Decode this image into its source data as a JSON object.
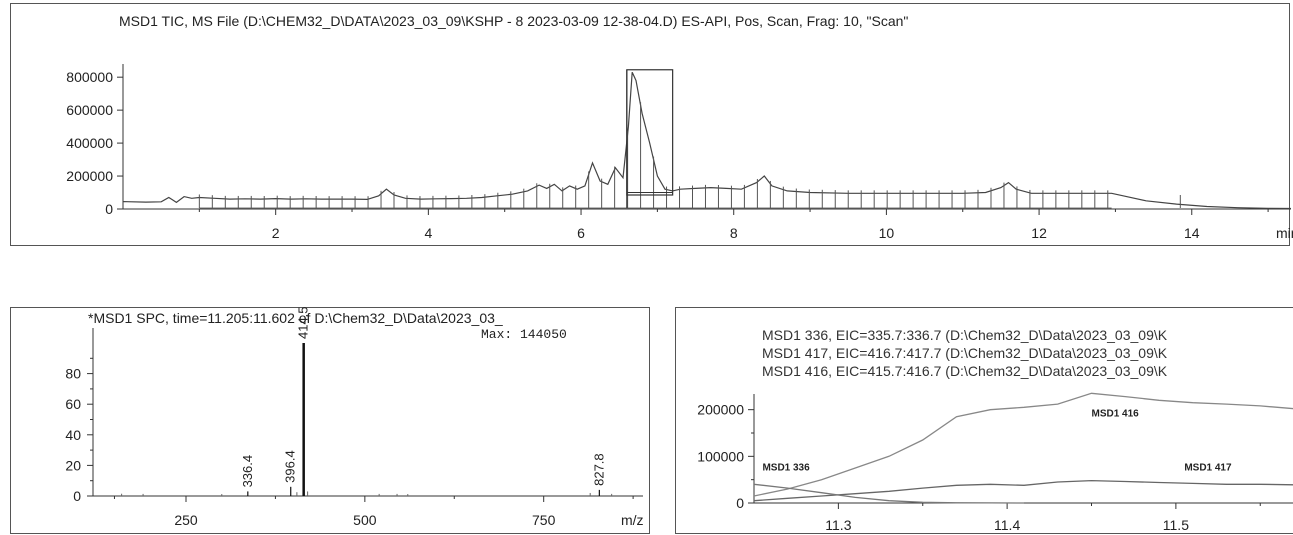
{
  "chart_data": [
    {
      "type": "line",
      "title": "MSD1 TIC, MS File (D:\\CHEM32_D\\DATA\\2023_03_09\\KSHP - 8 2023-03-09 12-38-04.D)    ES-API, Pos, Scan, Frag: 10, \"Scan\"",
      "xlabel": "min",
      "ylabel": "",
      "xlim": [
        0,
        15.3
      ],
      "ylim": [
        0,
        880000
      ],
      "x_ticks": [
        2,
        4,
        6,
        8,
        10,
        12,
        14
      ],
      "y_ticks": [
        0,
        200000,
        400000,
        600000,
        800000
      ],
      "x_tick_labels": [
        "2",
        "4",
        "6",
        "8",
        "10",
        "12",
        "14"
      ],
      "y_tick_labels": [
        "0",
        "200000",
        "400000",
        "600000",
        "800000"
      ],
      "x_unit_label": "min",
      "selection_range": [
        6.6,
        7.2
      ],
      "series": [
        {
          "x": [
            0.0,
            0.3,
            0.5,
            0.6,
            0.65,
            0.7,
            0.8,
            0.9,
            1.0,
            1.2,
            1.4,
            1.6,
            1.8,
            2.0,
            2.2,
            2.4,
            2.6,
            2.8,
            3.0,
            3.2,
            3.35,
            3.45,
            3.55,
            3.7,
            3.9,
            4.1,
            4.3,
            4.5,
            4.7,
            4.9,
            5.1,
            5.3,
            5.45,
            5.55,
            5.65,
            5.75,
            5.85,
            5.95,
            6.05,
            6.15,
            6.25,
            6.35,
            6.45,
            6.55,
            6.62,
            6.67,
            6.72,
            6.8,
            6.9,
            7.0,
            7.1,
            7.2,
            7.3,
            7.5,
            7.7,
            7.9,
            8.1,
            8.3,
            8.4,
            8.5,
            8.7,
            9.0,
            9.5,
            10.0,
            10.5,
            11.0,
            11.3,
            11.5,
            11.6,
            11.7,
            11.9,
            12.3,
            12.7,
            12.95,
            13.1,
            13.4,
            13.8,
            14.2,
            14.6,
            15.0,
            15.3
          ],
          "y": [
            45000,
            42000,
            44000,
            70000,
            55000,
            40000,
            75000,
            65000,
            70000,
            65000,
            60000,
            62000,
            60000,
            63000,
            60000,
            62000,
            60000,
            60000,
            60000,
            58000,
            80000,
            120000,
            85000,
            65000,
            60000,
            62000,
            63000,
            65000,
            70000,
            80000,
            90000,
            110000,
            145000,
            125000,
            150000,
            110000,
            140000,
            120000,
            140000,
            280000,
            170000,
            150000,
            250000,
            190000,
            500000,
            830000,
            780000,
            580000,
            400000,
            200000,
            120000,
            110000,
            120000,
            125000,
            130000,
            125000,
            120000,
            160000,
            200000,
            140000,
            110000,
            100000,
            95000,
            95000,
            95000,
            95000,
            100000,
            130000,
            160000,
            120000,
            95000,
            95000,
            95000,
            95000,
            80000,
            50000,
            30000,
            15000,
            8000,
            4000,
            3000
          ]
        }
      ]
    },
    {
      "type": "bar",
      "title": "*MSD1 SPC, time=11.205:11.602 of D:\\Chem32_D\\Data\\2023_03_",
      "annotation": "Max: 144050",
      "xlabel": "m/z",
      "ylabel": "",
      "xlim": [
        120,
        900
      ],
      "ylim": [
        0,
        100
      ],
      "x_ticks": [
        250,
        500,
        750
      ],
      "y_ticks": [
        0,
        20,
        40,
        60,
        80
      ],
      "x_tick_labels": [
        "250",
        "500",
        "750"
      ],
      "y_tick_labels": [
        "0",
        "20",
        "40",
        "60",
        "80"
      ],
      "x_unit_label": "m/z",
      "peaks": [
        {
          "mz": 336.4,
          "intensity": 3,
          "label": "336.4"
        },
        {
          "mz": 396.4,
          "intensity": 6,
          "label": "396.4"
        },
        {
          "mz": 414.5,
          "intensity": 100,
          "label": "414.5"
        },
        {
          "mz": 827.8,
          "intensity": 4,
          "label": "827.8"
        }
      ],
      "minor_peaks": [
        {
          "mz": 160,
          "intensity": 0.5
        },
        {
          "mz": 190,
          "intensity": 0.4
        },
        {
          "mz": 300,
          "intensity": 0.3
        },
        {
          "mz": 405,
          "intensity": 1.5
        },
        {
          "mz": 420,
          "intensity": 2
        },
        {
          "mz": 520,
          "intensity": 0.4
        },
        {
          "mz": 545,
          "intensity": 0.4
        },
        {
          "mz": 560,
          "intensity": 0.3
        },
        {
          "mz": 815,
          "intensity": 1
        },
        {
          "mz": 845,
          "intensity": 0.4
        }
      ]
    },
    {
      "type": "line",
      "title": "",
      "legend_lines": [
        "MSD1 336, EIC=335.7:336.7 (D:\\Chem32_D\\Data\\2023_03_09\\K",
        "MSD1 417, EIC=416.7:417.7 (D:\\Chem32_D\\Data\\2023_03_09\\K",
        "MSD1 416, EIC=415.7:416.7 (D:\\Chem32_D\\Data\\2023_03_09\\K"
      ],
      "xlabel": "",
      "ylabel": "",
      "xlim": [
        11.25,
        11.57
      ],
      "ylim": [
        0,
        240000
      ],
      "x_ticks": [
        11.3,
        11.4,
        11.5
      ],
      "y_ticks": [
        0,
        100000,
        200000
      ],
      "x_tick_labels": [
        "11.3",
        "11.4",
        "11.5"
      ],
      "y_tick_labels": [
        "0",
        "100000",
        "200000"
      ],
      "series": [
        {
          "name": "MSD1 416",
          "x": [
            11.25,
            11.27,
            11.29,
            11.31,
            11.33,
            11.35,
            11.37,
            11.39,
            11.41,
            11.43,
            11.45,
            11.47,
            11.49,
            11.51,
            11.53,
            11.55,
            11.57
          ],
          "y": [
            15000,
            30000,
            50000,
            75000,
            100000,
            135000,
            185000,
            200000,
            205000,
            212000,
            235000,
            228000,
            220000,
            215000,
            212000,
            208000,
            202000
          ]
        },
        {
          "name": "MSD1 417",
          "x": [
            11.25,
            11.27,
            11.29,
            11.31,
            11.33,
            11.35,
            11.37,
            11.39,
            11.41,
            11.43,
            11.45,
            11.47,
            11.49,
            11.51,
            11.53,
            11.55,
            11.57
          ],
          "y": [
            5000,
            10000,
            15000,
            20000,
            25000,
            32000,
            38000,
            40000,
            38000,
            45000,
            48000,
            46000,
            44000,
            42000,
            40000,
            40000,
            39000
          ]
        },
        {
          "name": "MSD1 336",
          "x": [
            11.25,
            11.27,
            11.29,
            11.31,
            11.33,
            11.35,
            11.37,
            11.39,
            11.41
          ],
          "y": [
            40000,
            32000,
            22000,
            12000,
            5000,
            1500,
            500,
            200,
            100
          ]
        }
      ]
    }
  ]
}
